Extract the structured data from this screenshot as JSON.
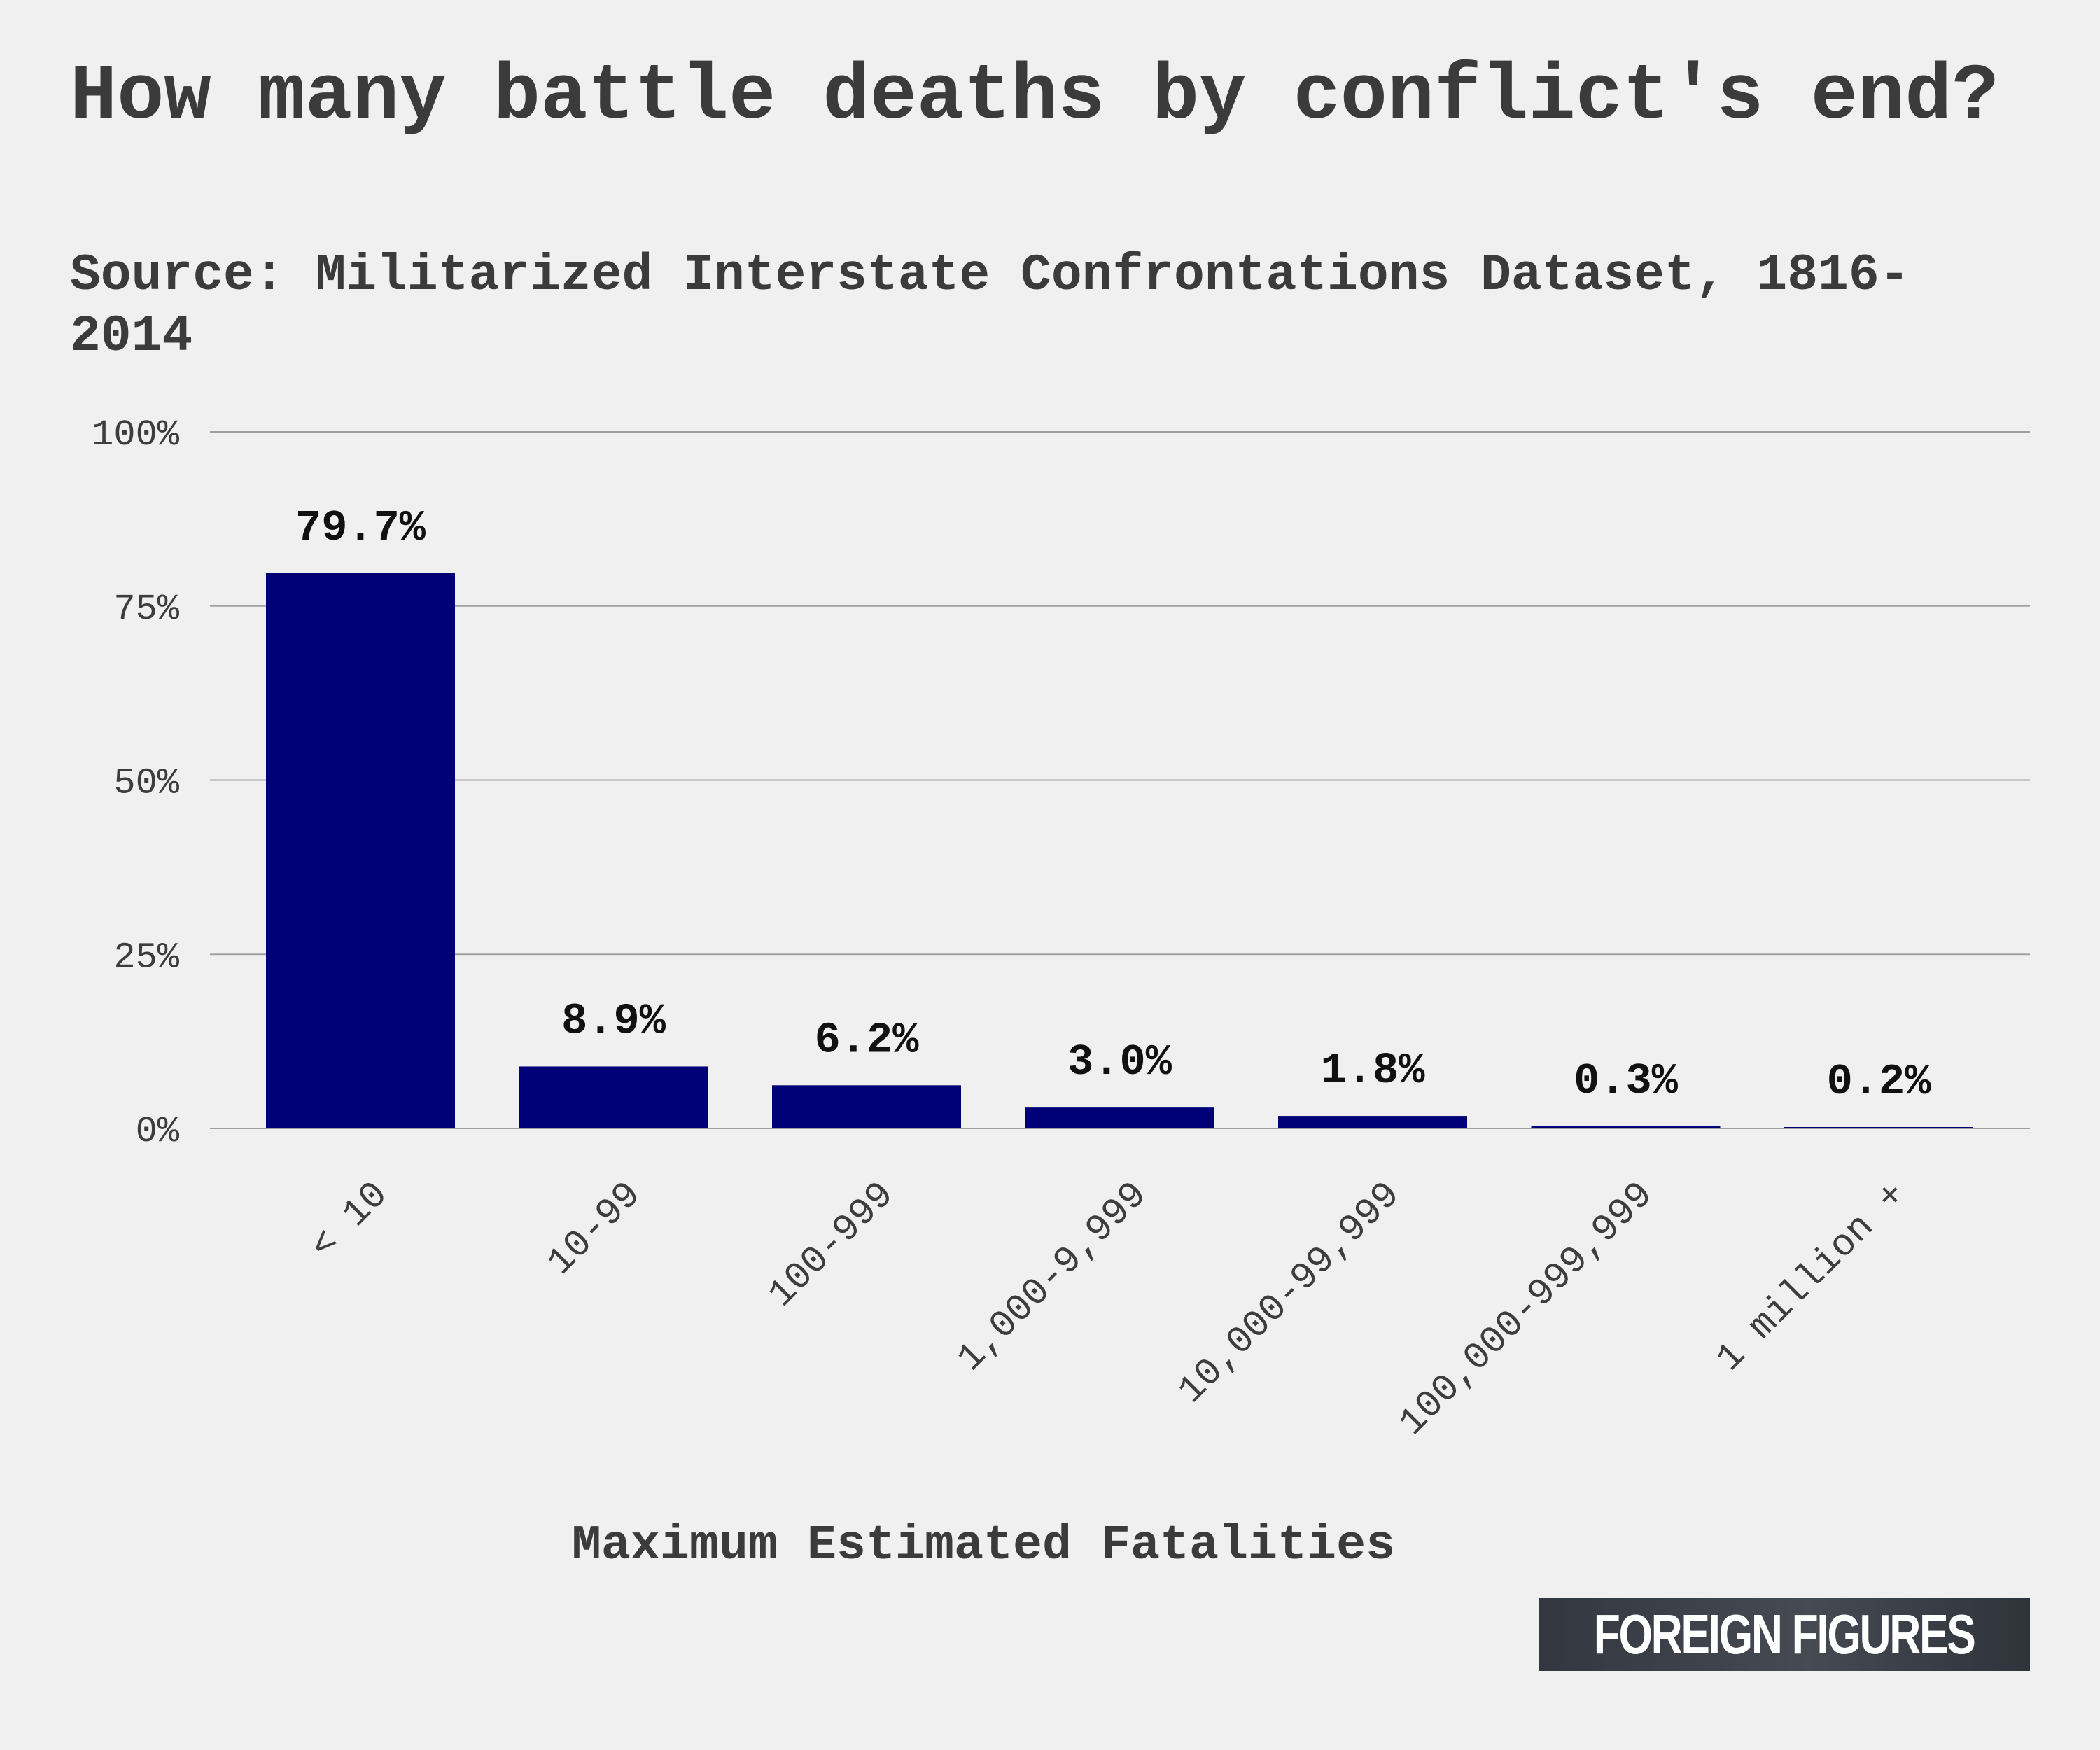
{
  "chart_data": {
    "type": "bar",
    "title": "How many battle deaths by conflict's end?",
    "subtitle": "Source: Militarized Interstate Confrontations Dataset, 1816-2014",
    "xlabel": "Maximum Estimated Fatalities",
    "ylabel": "",
    "categories": [
      "< 10",
      "10-99",
      "100-999",
      "1,000-9,999",
      "10,000-99,999",
      "100,000-999,999",
      "1 million +"
    ],
    "values": [
      79.7,
      8.9,
      6.2,
      3.0,
      1.8,
      0.3,
      0.2
    ],
    "value_labels": [
      "79.7%",
      "8.9%",
      "6.2%",
      "3.0%",
      "1.8%",
      "0.3%",
      "0.2%"
    ],
    "ylim": [
      0,
      100
    ],
    "yticks": [
      0,
      25,
      50,
      75,
      100
    ],
    "ytick_labels": [
      "0%",
      "25%",
      "50%",
      "75%",
      "100%"
    ],
    "grid": true,
    "legend": "none",
    "bar_color": "#000077",
    "grid_color": "#a0a0a0"
  },
  "logo": {
    "text": "FOREIGN FIGURES"
  }
}
